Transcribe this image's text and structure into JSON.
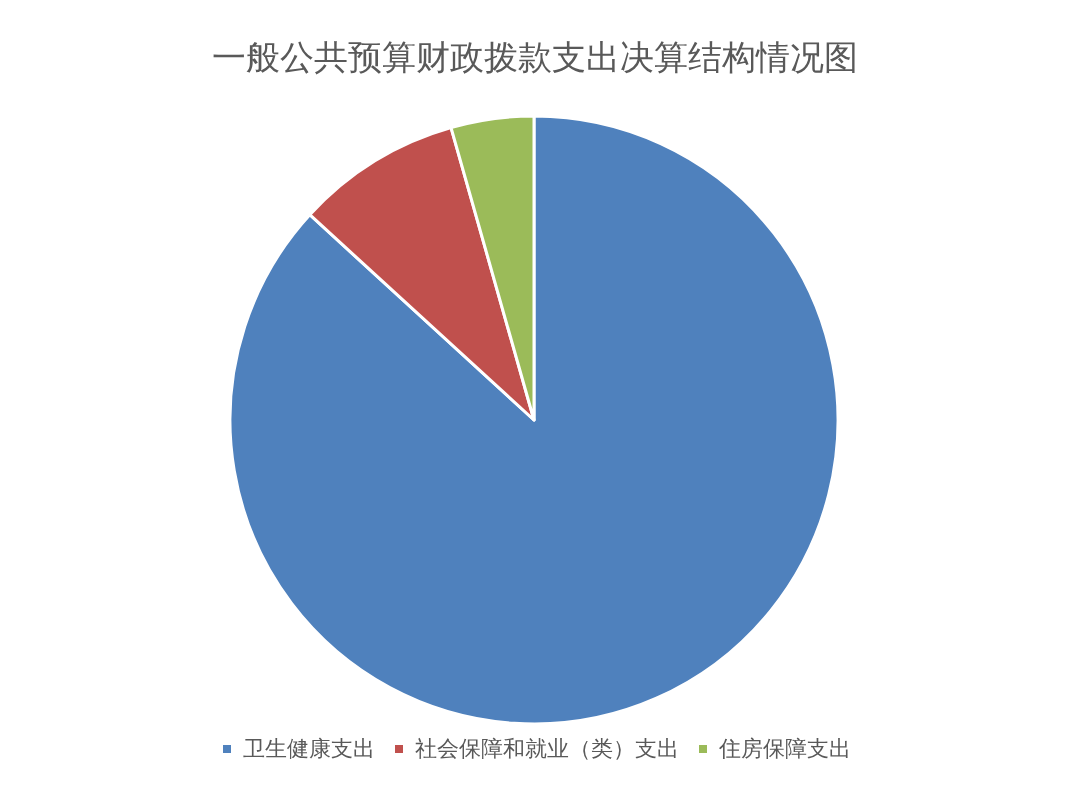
{
  "chart_data": {
    "type": "pie",
    "title": "一般公共预算财政拨款支出决算结构情况图",
    "categories": [
      "卫生健康支出",
      "社会保障和就业（类）支出",
      "住房保障支出"
    ],
    "values": [
      86.8,
      8.8,
      4.4
    ],
    "colors": [
      "#4f81bd",
      "#c0504d",
      "#9bbb59"
    ],
    "legend": "bottom"
  }
}
